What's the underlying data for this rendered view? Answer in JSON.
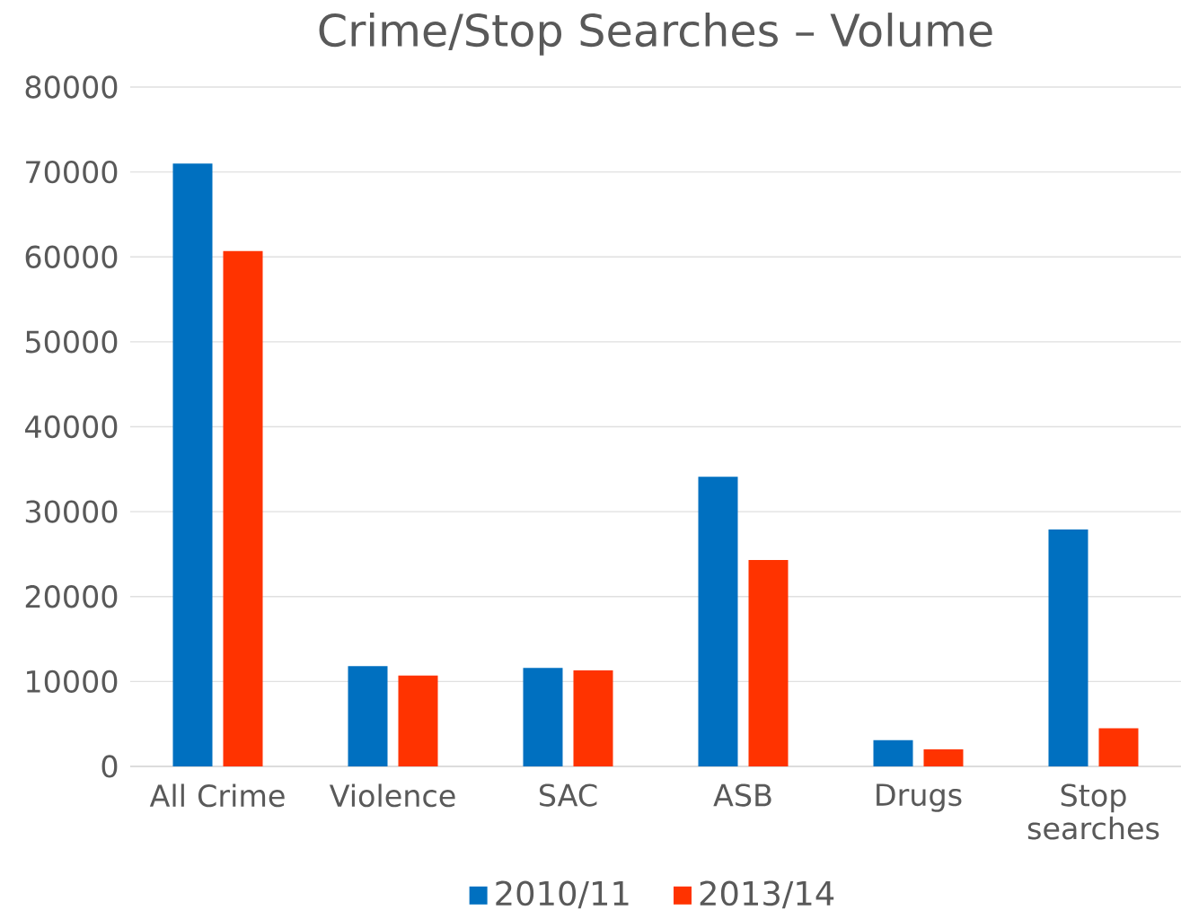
{
  "chart_data": {
    "type": "bar",
    "title": "Crime/Stop Searches – Volume",
    "categories": [
      "All Crime",
      "Violence",
      "SAC",
      "ASB",
      "Drugs",
      "Stop searches"
    ],
    "series": [
      {
        "name": "2010/11",
        "color": "#0070c0",
        "values": [
          71000,
          11800,
          11600,
          34100,
          3100,
          27900
        ]
      },
      {
        "name": "2013/14",
        "color": "#ff3300",
        "values": [
          60700,
          10700,
          11300,
          24300,
          2000,
          4500
        ]
      }
    ],
    "ylim": [
      0,
      80000
    ],
    "yticks": [
      0,
      10000,
      20000,
      30000,
      40000,
      50000,
      60000,
      70000,
      80000
    ],
    "grid": "y",
    "legend": "bottom"
  }
}
